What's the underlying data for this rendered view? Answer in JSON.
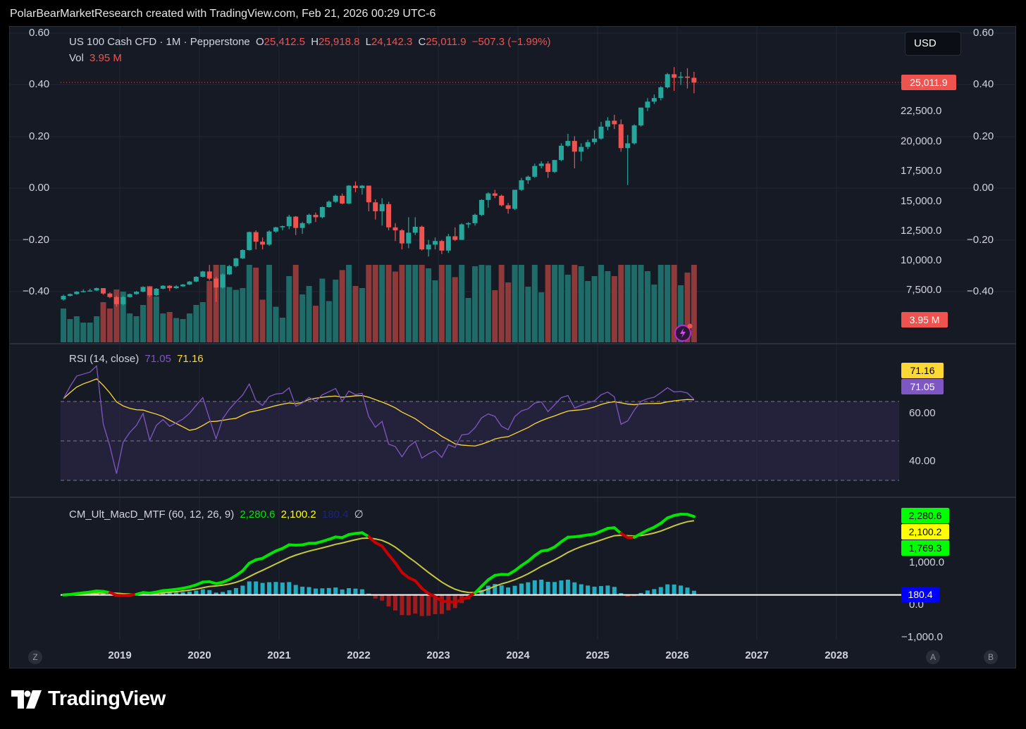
{
  "credit": "PolarBearMarketResearch created with TradingView.com, Feb 21, 2026 00:29 UTC-6",
  "usd_button": "USD",
  "main_legend": {
    "symbol": "US 100 Cash CFD · 1M · Pepperstone",
    "o_label": "O",
    "o_value": "25,412.5",
    "h_label": "H",
    "h_value": "25,918.8",
    "l_label": "L",
    "l_value": "24,142.3",
    "c_label": "C",
    "c_value": "25,011.9",
    "change": "−507.3 (−1.99%)",
    "vol_label": "Vol",
    "vol_value": "3.95 M"
  },
  "left_scale": [
    "0.60",
    "0.40",
    "0.20",
    "0.00",
    "−0.20",
    "−0.40"
  ],
  "right_scale_outer": [
    "0.60",
    "0.40",
    "0.20",
    "0.00",
    "−0.20",
    "−0.40"
  ],
  "price_scale": [
    "22,500.0",
    "20,000.0",
    "17,500.0",
    "15,000.0",
    "12,500.0",
    "10,000.0",
    "7,500.0"
  ],
  "price_tag": "25,011.9",
  "volume_tag": "3.95 M",
  "rsi": {
    "legend_name": "RSI (14, close)",
    "value1": "71.05",
    "value2": "71.16",
    "scale": [
      "60.00",
      "40.00"
    ],
    "tag_ma": "71.16",
    "tag_rsi": "71.05"
  },
  "macd": {
    "legend_name": "CM_Ult_MacD_MTF (60, 12, 26, 9)",
    "value1": "2,280.6",
    "value2": "2,100.2",
    "value3": "180.4",
    "symbol": "∅",
    "scale": [
      "1,000.0",
      "0.0",
      "−1,000.0"
    ],
    "tag1": "2,280.6",
    "tag2": "2,100.2",
    "tag3": "1,769.3",
    "tag4": "180.4"
  },
  "x_axis": [
    "2019",
    "2020",
    "2021",
    "2022",
    "2023",
    "2024",
    "2025",
    "2026",
    "2027",
    "2028"
  ],
  "corner_buttons": {
    "left": "Z",
    "right_a": "A",
    "right_b": "B"
  },
  "brand": "TradingView",
  "colors": {
    "up": "#26a69a",
    "down": "#ef5350",
    "rsi": "#7e57c2",
    "rsi_ma": "#fdd835",
    "macd": "#00e600",
    "signal": "#c8c83c",
    "hist_pos": "#26c6da",
    "hist_neg": "#b71c1c"
  },
  "chart_data": {
    "type": "candlestick",
    "interval": "1M",
    "x_range": [
      "2018-05",
      "2026-02"
    ],
    "price_ylim": [
      5000,
      27500
    ],
    "ohlc_monthly": [
      [
        6800,
        7200,
        6700,
        7100
      ],
      [
        7100,
        7300,
        7050,
        7250
      ],
      [
        7250,
        7500,
        7200,
        7450
      ],
      [
        7450,
        7650,
        7400,
        7500
      ],
      [
        7500,
        7700,
        7450,
        7550
      ],
      [
        7550,
        7800,
        7500,
        7750
      ],
      [
        7750,
        7750,
        7200,
        7300
      ],
      [
        7300,
        7400,
        6900,
        7000
      ],
      [
        7000,
        7100,
        6200,
        6400
      ],
      [
        6400,
        7100,
        6300,
        7000
      ],
      [
        7000,
        7300,
        6950,
        7250
      ],
      [
        7250,
        7500,
        7200,
        7450
      ],
      [
        7450,
        7900,
        7400,
        7850
      ],
      [
        7850,
        7900,
        7000,
        7150
      ],
      [
        7150,
        7750,
        7100,
        7700
      ],
      [
        7700,
        8000,
        7650,
        7950
      ],
      [
        7950,
        8000,
        7500,
        7750
      ],
      [
        7750,
        8000,
        7700,
        7900
      ],
      [
        7900,
        8100,
        7850,
        8050
      ],
      [
        8050,
        8350,
        8000,
        8300
      ],
      [
        8300,
        8750,
        8250,
        8700
      ],
      [
        8700,
        9200,
        8650,
        9150
      ],
      [
        9150,
        9700,
        8400,
        8550
      ],
      [
        8550,
        8700,
        6600,
        7800
      ],
      [
        7800,
        9000,
        7700,
        8900
      ],
      [
        8900,
        9700,
        8850,
        9600
      ],
      [
        9600,
        10300,
        9500,
        10250
      ],
      [
        10250,
        11000,
        10200,
        10950
      ],
      [
        10950,
        12500,
        10900,
        12450
      ],
      [
        12450,
        12600,
        11000,
        11650
      ],
      [
        11650,
        12000,
        11000,
        11400
      ],
      [
        11400,
        12600,
        11300,
        12500
      ],
      [
        12500,
        12900,
        12400,
        12850
      ],
      [
        12850,
        13000,
        12600,
        12950
      ],
      [
        12950,
        13900,
        12700,
        13750
      ],
      [
        13750,
        13800,
        12200,
        12800
      ],
      [
        12800,
        13300,
        12300,
        13200
      ],
      [
        13200,
        14000,
        13100,
        13900
      ],
      [
        13900,
        14100,
        13300,
        13700
      ],
      [
        13700,
        14600,
        13600,
        14550
      ],
      [
        14550,
        15100,
        14500,
        15000
      ],
      [
        15000,
        15600,
        14900,
        15500
      ],
      [
        15500,
        15700,
        14800,
        14850
      ],
      [
        14850,
        16400,
        14800,
        16350
      ],
      [
        16350,
        16700,
        15800,
        16150
      ],
      [
        16150,
        16400,
        15600,
        16350
      ],
      [
        16350,
        16100,
        14200,
        14950
      ],
      [
        14950,
        15200,
        13500,
        14200
      ],
      [
        14200,
        15300,
        13000,
        14800
      ],
      [
        14800,
        15000,
        12600,
        12850
      ],
      [
        12850,
        13200,
        11700,
        12600
      ],
      [
        12600,
        12700,
        11000,
        11500
      ],
      [
        11500,
        13700,
        11100,
        12400
      ],
      [
        12400,
        13700,
        12200,
        12900
      ],
      [
        12900,
        13000,
        10900,
        11000
      ],
      [
        11000,
        11800,
        10400,
        11400
      ],
      [
        11400,
        12000,
        11000,
        11700
      ],
      [
        11700,
        11800,
        10600,
        10900
      ],
      [
        10900,
        12300,
        10700,
        12100
      ],
      [
        12100,
        12850,
        11700,
        11800
      ],
      [
        11800,
        13200,
        11800,
        13100
      ],
      [
        13100,
        13300,
        12800,
        13200
      ],
      [
        13200,
        14000,
        13000,
        13900
      ],
      [
        13900,
        15200,
        13800,
        15150
      ],
      [
        15150,
        15800,
        14500,
        15700
      ],
      [
        15700,
        16000,
        15300,
        15500
      ],
      [
        15500,
        15600,
        14600,
        14700
      ],
      [
        14700,
        14900,
        14000,
        14400
      ],
      [
        14400,
        16000,
        14300,
        16000
      ],
      [
        16000,
        17000,
        15900,
        16800
      ],
      [
        16800,
        17200,
        16500,
        17100
      ],
      [
        17100,
        18200,
        17000,
        18000
      ],
      [
        18000,
        18400,
        17800,
        18200
      ],
      [
        18200,
        18400,
        17000,
        17500
      ],
      [
        17500,
        18500,
        17400,
        18500
      ],
      [
        18500,
        19900,
        18400,
        19700
      ],
      [
        19700,
        20700,
        19600,
        20100
      ],
      [
        20100,
        20500,
        17800,
        19200
      ],
      [
        19200,
        19900,
        18400,
        19600
      ],
      [
        19600,
        20200,
        19400,
        20000
      ],
      [
        20000,
        21000,
        19800,
        20300
      ],
      [
        20300,
        21700,
        20200,
        21300
      ],
      [
        21300,
        22100,
        21000,
        21800
      ],
      [
        21800,
        22300,
        21100,
        21500
      ],
      [
        21500,
        21900,
        19200,
        19500
      ],
      [
        19500,
        20600,
        16400,
        19900
      ],
      [
        19900,
        21500,
        19800,
        21400
      ],
      [
        21400,
        22900,
        21300,
        22900
      ],
      [
        22900,
        23700,
        22600,
        23400
      ],
      [
        23400,
        24000,
        23200,
        23700
      ],
      [
        23700,
        24700,
        23500,
        24600
      ],
      [
        24600,
        25800,
        24500,
        25700
      ],
      [
        25700,
        26300,
        24300,
        25400
      ],
      [
        25400,
        25900,
        24800,
        25500
      ],
      [
        25500,
        26200,
        24500,
        25400
      ],
      [
        25400,
        25900,
        24100,
        25000
      ]
    ],
    "last_close": 25011.9,
    "rsi_last": 71.05,
    "rsi_ma_last": 71.16,
    "rsi_ylim": [
      25,
      95
    ],
    "rsi_levels": [
      30,
      50,
      70
    ],
    "macd_last": 2280.6,
    "signal_last": 2100.2,
    "histogram_last": 180.4,
    "macd_ylim": [
      -1300,
      2800
    ]
  }
}
